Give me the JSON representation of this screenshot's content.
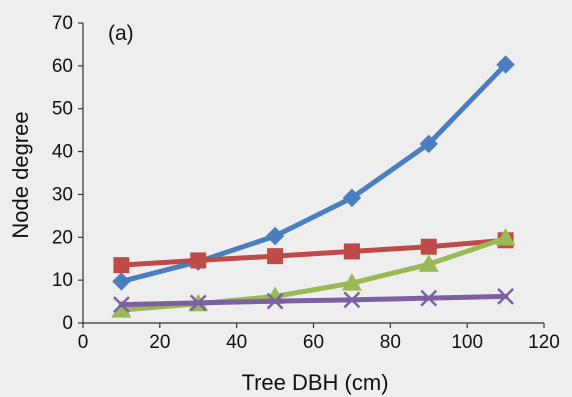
{
  "chart_data": {
    "type": "line",
    "panel_label": "(a)",
    "xlabel": "Tree DBH (cm)",
    "ylabel": "Node degree",
    "xlim": [
      0,
      120
    ],
    "ylim": [
      0,
      70
    ],
    "xticks": [
      0,
      20,
      40,
      60,
      80,
      100,
      120
    ],
    "yticks": [
      0,
      10,
      20,
      30,
      40,
      50,
      60,
      70
    ],
    "grid": false,
    "legend": "none",
    "x": [
      10,
      30,
      50,
      70,
      90,
      110
    ],
    "series": [
      {
        "color": "#4a7ebf",
        "marker": "diamond",
        "values": [
          9.7,
          14.3,
          20.3,
          29.2,
          41.8,
          60.3
        ]
      },
      {
        "color": "#be4b48",
        "marker": "square",
        "values": [
          13.5,
          14.6,
          15.6,
          16.7,
          17.8,
          19.3
        ]
      },
      {
        "color": "#98b954",
        "marker": "triangle",
        "values": [
          3.0,
          4.5,
          6.2,
          9.3,
          13.7,
          19.8
        ]
      },
      {
        "color": "#7d60a0",
        "marker": "x",
        "values": [
          4.3,
          4.7,
          5.1,
          5.4,
          5.8,
          6.2
        ]
      }
    ]
  }
}
